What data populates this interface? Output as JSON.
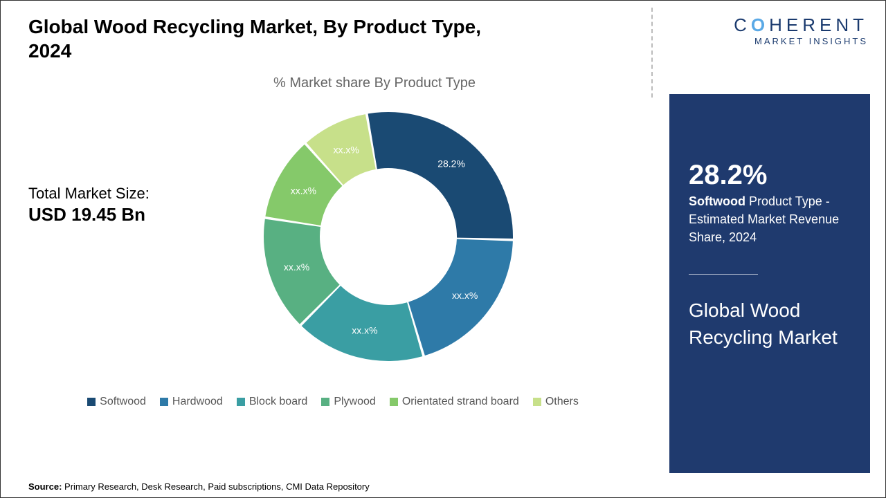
{
  "title": "Global Wood Recycling Market, By Product Type, 2024",
  "chart": {
    "type": "donut",
    "subtitle": "% Market share By Product Type",
    "inner_radius_ratio": 0.55,
    "background_color": "#ffffff",
    "series": [
      {
        "name": "Softwood",
        "value": 28.2,
        "label": "28.2%",
        "color": "#1a4a73"
      },
      {
        "name": "Hardwood",
        "value": 20.0,
        "label": "xx.x%",
        "color": "#2e7aa8"
      },
      {
        "name": "Block board",
        "value": 17.0,
        "label": "xx.x%",
        "color": "#3a9ea3"
      },
      {
        "name": "Plywood",
        "value": 15.0,
        "label": "xx.x%",
        "color": "#58b082"
      },
      {
        "name": "Orientated strand board",
        "value": 11.0,
        "label": "xx.x%",
        "color": "#85c96a"
      },
      {
        "name": "Others",
        "value": 8.8,
        "label": "xx.x%",
        "color": "#c7e08a"
      }
    ],
    "label_fontsize": 14,
    "label_color": "#ffffff",
    "start_angle_deg": -10,
    "slice_gap_deg": 1.2
  },
  "market_size": {
    "label": "Total Market Size:",
    "value": "USD 19.45 Bn"
  },
  "legend": {
    "swatch_size": 12,
    "text_color": "#555555",
    "fontsize": 16,
    "items": [
      {
        "name": "Softwood",
        "color": "#1a4a73"
      },
      {
        "name": "Hardwood",
        "color": "#2e7aa8"
      },
      {
        "name": "Block board",
        "color": "#3a9ea3"
      },
      {
        "name": "Plywood",
        "color": "#58b082"
      },
      {
        "name": "Orientated strand board",
        "color": "#85c96a"
      },
      {
        "name": "Others",
        "color": "#c7e08a"
      }
    ]
  },
  "source": {
    "label": "Source:",
    "text": "Primary Research, Desk Research, Paid subscriptions, CMI Data Repository"
  },
  "logo": {
    "text_main_left": "C",
    "text_main_o": "O",
    "text_main_right": "HERENT",
    "text_sub": "MARKET INSIGHTS",
    "color_main": "#1a3a6e",
    "color_accent": "#5aa9e6"
  },
  "side_panel": {
    "background_color": "#1f3a6e",
    "text_color": "#ffffff",
    "stat_value": "28.2%",
    "stat_bold": "Softwood",
    "stat_rest": " Product Type - Estimated Market Revenue Share, 2024",
    "title": "Global Wood Recycling Market"
  }
}
